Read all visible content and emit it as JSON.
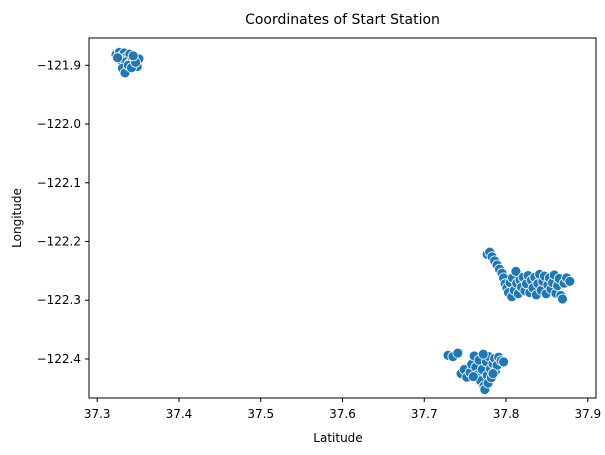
{
  "chart_data": {
    "type": "scatter",
    "title": "Coordinates of Start Station",
    "xlabel": "Latitude",
    "ylabel": "Longitude",
    "xlim": [
      37.29,
      37.91
    ],
    "ylim": [
      -122.4665,
      -121.8535
    ],
    "x_ticks": [
      {
        "value": 37.3,
        "label": "37.3"
      },
      {
        "value": 37.4,
        "label": "37.4"
      },
      {
        "value": 37.5,
        "label": "37.5"
      },
      {
        "value": 37.6,
        "label": "37.6"
      },
      {
        "value": 37.7,
        "label": "37.7"
      },
      {
        "value": 37.8,
        "label": "37.8"
      },
      {
        "value": 37.9,
        "label": "37.9"
      }
    ],
    "y_ticks": [
      {
        "value": -121.9,
        "label": "−121.9"
      },
      {
        "value": -122.0,
        "label": "−122.0"
      },
      {
        "value": -122.1,
        "label": "−122.1"
      },
      {
        "value": -122.2,
        "label": "−122.2"
      },
      {
        "value": -122.3,
        "label": "−122.3"
      },
      {
        "value": -122.4,
        "label": "−122.4"
      }
    ],
    "grid": false,
    "point_color": "#1f77b4",
    "point_edge_color": "#ffffff",
    "points": [
      [
        37.323,
        -121.882
      ],
      [
        37.327,
        -121.878
      ],
      [
        37.33,
        -121.884
      ],
      [
        37.333,
        -121.879
      ],
      [
        37.336,
        -121.886
      ],
      [
        37.34,
        -121.881
      ],
      [
        37.329,
        -121.891
      ],
      [
        37.335,
        -121.894
      ],
      [
        37.339,
        -121.897
      ],
      [
        37.343,
        -121.892
      ],
      [
        37.346,
        -121.898
      ],
      [
        37.349,
        -121.902
      ],
      [
        37.351,
        -121.889
      ],
      [
        37.331,
        -121.905
      ],
      [
        37.334,
        -121.913
      ],
      [
        37.338,
        -121.9
      ],
      [
        37.342,
        -121.904
      ],
      [
        37.347,
        -121.895
      ],
      [
        37.325,
        -121.887
      ],
      [
        37.344,
        -121.884
      ],
      [
        37.729,
        -122.394
      ],
      [
        37.735,
        -122.396
      ],
      [
        37.741,
        -122.39
      ],
      [
        37.745,
        -122.425
      ],
      [
        37.749,
        -122.418
      ],
      [
        37.752,
        -122.431
      ],
      [
        37.756,
        -122.423
      ],
      [
        37.758,
        -122.409
      ],
      [
        37.761,
        -122.395
      ],
      [
        37.763,
        -122.414
      ],
      [
        37.765,
        -122.427
      ],
      [
        37.767,
        -122.402
      ],
      [
        37.769,
        -122.437
      ],
      [
        37.771,
        -122.418
      ],
      [
        37.773,
        -122.446
      ],
      [
        37.774,
        -122.452
      ],
      [
        37.776,
        -122.405
      ],
      [
        37.777,
        -122.428
      ],
      [
        37.778,
        -122.441
      ],
      [
        37.779,
        -122.396
      ],
      [
        37.781,
        -122.417
      ],
      [
        37.782,
        -122.432
      ],
      [
        37.784,
        -122.408
      ],
      [
        37.786,
        -122.399
      ],
      [
        37.787,
        -122.421
      ],
      [
        37.789,
        -122.411
      ],
      [
        37.791,
        -122.397
      ],
      [
        37.794,
        -122.403
      ],
      [
        37.797,
        -122.405
      ],
      [
        37.76,
        -122.43
      ],
      [
        37.772,
        -122.392
      ],
      [
        37.784,
        -122.425
      ],
      [
        37.777,
        -122.222
      ],
      [
        37.78,
        -122.218
      ],
      [
        37.783,
        -122.226
      ],
      [
        37.786,
        -122.233
      ],
      [
        37.789,
        -122.24
      ],
      [
        37.792,
        -122.247
      ],
      [
        37.795,
        -122.254
      ],
      [
        37.797,
        -122.262
      ],
      [
        37.799,
        -122.272
      ],
      [
        37.801,
        -122.279
      ],
      [
        37.803,
        -122.287
      ],
      [
        37.805,
        -122.27
      ],
      [
        37.807,
        -122.294
      ],
      [
        37.808,
        -122.262
      ],
      [
        37.81,
        -122.283
      ],
      [
        37.812,
        -122.251
      ],
      [
        37.813,
        -122.271
      ],
      [
        37.815,
        -122.289
      ],
      [
        37.817,
        -122.266
      ],
      [
        37.819,
        -122.278
      ],
      [
        37.821,
        -122.261
      ],
      [
        37.823,
        -122.284
      ],
      [
        37.825,
        -122.272
      ],
      [
        37.827,
        -122.258
      ],
      [
        37.829,
        -122.287
      ],
      [
        37.831,
        -122.266
      ],
      [
        37.833,
        -122.279
      ],
      [
        37.835,
        -122.261
      ],
      [
        37.837,
        -122.291
      ],
      [
        37.839,
        -122.272
      ],
      [
        37.841,
        -122.256
      ],
      [
        37.843,
        -122.283
      ],
      [
        37.845,
        -122.268
      ],
      [
        37.847,
        -122.259
      ],
      [
        37.849,
        -122.289
      ],
      [
        37.851,
        -122.274
      ],
      [
        37.853,
        -122.262
      ],
      [
        37.855,
        -122.281
      ],
      [
        37.857,
        -122.27
      ],
      [
        37.859,
        -122.257
      ],
      [
        37.861,
        -122.288
      ],
      [
        37.863,
        -122.275
      ],
      [
        37.865,
        -122.263
      ],
      [
        37.867,
        -122.292
      ],
      [
        37.869,
        -122.298
      ],
      [
        37.871,
        -122.271
      ],
      [
        37.874,
        -122.262
      ],
      [
        37.878,
        -122.268
      ]
    ]
  }
}
